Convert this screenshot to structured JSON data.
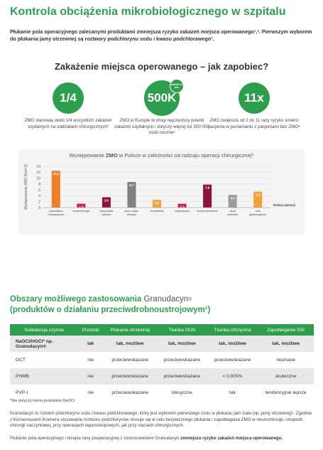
{
  "title": "Kontrola obciążenia mikrobiologicznego w szpitalu",
  "intro": "Płukanie pola operacyjnego zalecanymi produktami zmniejsza ryzyko zakażeń miejsca operowanego¹,². Pierwszym wyborem do płukania jamy otrzewnej są roztwory podchlorynu sodu i kwasu podchlorawego¹.",
  "subheading": "Zakażenie miejsca operowanego – jak zapobiec?",
  "stats": [
    {
      "value": "1/4",
      "text": "ZMO stanowią około 1/4 wszystkich zakażeń szpitalnych na oddziałach chirurgicznych²"
    },
    {
      "value": "500K",
      "badge": "ponad 0,5 mln",
      "text": "ZMO w Europie to drugi najczęstszy powód zakażeń szpitalnych i dotyczy więcej niż 500 000 osób rocznie³"
    },
    {
      "value": "11x",
      "text": "ZMO zwiększa od 2 do 11 razy ryzyko śmierci pacjenta w porównaniu z pacjentami bez ZMO⁴"
    }
  ],
  "chart_data": {
    "type": "bar",
    "title_pre": "Występowanie ",
    "title_bold": "ZMO",
    "title_post": " w Polsce w zależności od rodzaju operacji chirurgicznej⁵",
    "ylabel": "Występowanie ZMO [%/n=2]",
    "yticks": [
      "0",
      "2",
      "4",
      "6",
      "8",
      "10",
      "12",
      "14"
    ],
    "ylim": [
      0,
      14
    ],
    "legend_label": "Rodzaj operacji",
    "categories": [
      {
        "label": [
          "kolorektalna",
          "endoskopowa"
        ],
        "value": 12.5,
        "value_label": "12,5",
        "color": "#ef7d2a"
      },
      {
        "label": [
          "torakochirurgia"
        ],
        "value": 1.3,
        "value_label": "1,3",
        "color": "#c9203d"
      },
      {
        "label": [
          "naczyniowa",
          "(tętnice)"
        ],
        "value": 3.5,
        "value_label": "3,5",
        "color": "#8b1535"
      },
      {
        "label": [
          "płuca, wyrja,",
          "tarczyca"
        ],
        "value": 8.7,
        "value_label": "8,7",
        "color": "#808080"
      },
      {
        "label": [
          "kraniotomia"
        ],
        "value": 2.6,
        "value_label": "2,6",
        "color": "#f4a13b"
      },
      {
        "label": [
          "ortopedyczna"
        ],
        "value": 1.3,
        "value_label": "1,3",
        "color": "#c9203d"
      },
      {
        "label": [
          "endoprotezowanie"
        ],
        "value": 7.8,
        "value_label": "7,8",
        "color": "#8b1535"
      },
      {
        "label": [
          "cięcie",
          "cesarskie"
        ],
        "value": 4.3,
        "value_label": "4,3",
        "color": "#9a9a9a"
      },
      {
        "label": [
          "inne",
          "ginekologiczne"
        ],
        "value": 5.4,
        "value_label": "5,4",
        "color": "#f4a13b"
      }
    ]
  },
  "areas": {
    "line1_pre": "Obszary możliwego zastosowania",
    "brand": "Granudacyn",
    "line2": "(produktów o działaniu przeciwdrobnoustrojowym¹)"
  },
  "table": {
    "headers": [
      "Substancja czynna",
      "Przetoki",
      "Płukanie otrzewnej",
      "Tkanka OUN",
      "Tkanka chrzęstna",
      "Zapobieganie SSI"
    ],
    "rows": [
      {
        "cells": [
          "NaOCl/HOCl* np. Granudacyn®",
          "tak",
          "tak, możliwe",
          "tak, możliwe",
          "tak, możliwe",
          "tak, możliwe"
        ],
        "bold": true
      },
      {
        "cells": [
          "OCT",
          "nie",
          "przeciwwskazane",
          "przeciwwskazane",
          "przeciwwskazane",
          "nieznane"
        ],
        "bold": false
      },
      {
        "cells": [
          "PHMB",
          "nie",
          "przeciwwskazane",
          "przeciwwskazane",
          "< 0,005%",
          "skuteczne"
        ],
        "bold": false
      },
      {
        "cells": [
          "PVP-I",
          "nie",
          "przeciwwskazane",
          "toksyczne",
          "tak",
          "tendencyjnie lepsze"
        ],
        "bold": false
      }
    ]
  },
  "footnote": "*Nie dotyczy mono-produktów NaOCl",
  "paragraph1": "Granudacyn to roztwór podchlorynu sodu i kwasu podchlorawego, który jest wyborem pierwszego rzutu w płukaniu jam ciała (np. jamy otrzewnej)¹. Zgodnie z Konsensusem Kramera stosowanie roztworu podchlorynów stosuje się w celu bezpiecznego płukania i zapobiegania ZMO w neurochirurgii, ortopedii, chirurgii naczyniowej, przy operacjach laparoskopowych, jak przy cięciach chirurgicznych.",
  "paragraph2_pre": "Płukanie pola operacyjnego i terapia rany pooperacyjnej z zastosowaniem Granudacyn",
  "paragraph2_bold": " zmniejsza ryzyko zakażeń miejsca operowanego."
}
